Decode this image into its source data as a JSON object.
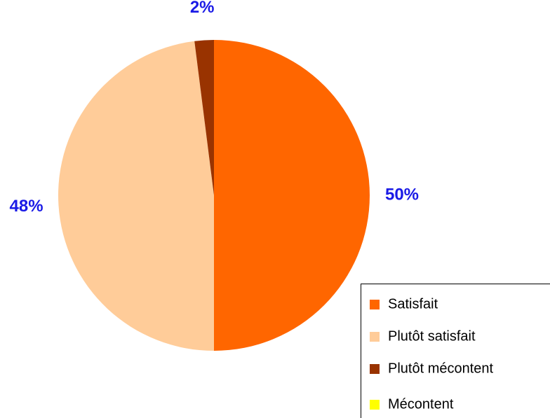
{
  "chart_data": {
    "type": "pie",
    "categories": [
      "Satisfait",
      "Plutôt satisfait",
      "Plutôt mécontent",
      "Mécontent"
    ],
    "values": [
      50,
      48,
      2,
      0
    ],
    "value_labels": [
      "50%",
      "48%",
      "2%",
      null
    ],
    "colors": [
      "#ff6600",
      "#ffcc99",
      "#993300",
      "#ffff00"
    ],
    "legend": "bottom-right"
  }
}
